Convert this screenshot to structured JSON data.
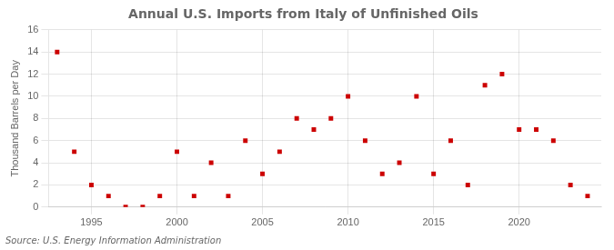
{
  "chart_data": {
    "type": "scatter",
    "title": "Annual U.S. Imports from Italy of Unfinished Oils",
    "ylabel": "Thousand Barrels per Day",
    "annotation": "Source: U.S. Energy Information Administration",
    "x": [
      1993,
      1994,
      1995,
      1996,
      1997,
      1998,
      1999,
      2000,
      2001,
      2002,
      2003,
      2004,
      2005,
      2006,
      2007,
      2008,
      2009,
      2010,
      2011,
      2012,
      2013,
      2014,
      2015,
      2016,
      2017,
      2018,
      2019,
      2020,
      2021,
      2022,
      2023,
      2024
    ],
    "values": [
      14,
      5,
      2,
      1,
      0,
      0,
      1,
      5,
      1,
      4,
      1,
      6,
      3,
      5,
      8,
      7,
      8,
      10,
      6,
      3,
      4,
      10,
      3,
      6,
      2,
      11,
      12,
      7,
      7,
      6,
      2,
      1
    ],
    "color": "#cc0000",
    "marker": "square",
    "xlim": [
      1992.5,
      2024.8
    ],
    "xticks": [
      1995,
      2000,
      2005,
      2010,
      2015,
      2020
    ],
    "ylim": [
      0,
      16
    ],
    "yticks": [
      0,
      2,
      4,
      6,
      8,
      10,
      12,
      14,
      16
    ],
    "grid": true,
    "legend": false
  }
}
